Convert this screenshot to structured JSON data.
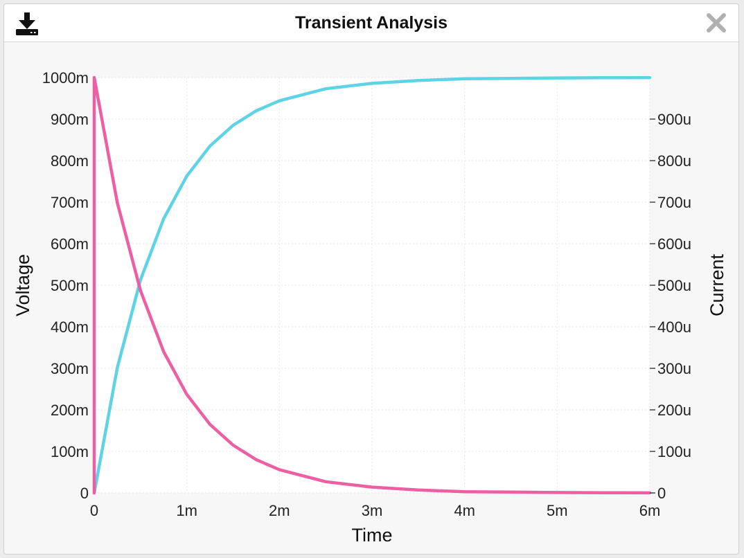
{
  "window": {
    "title": "Transient Analysis",
    "icons": {
      "download": "download-icon",
      "close": "close-icon"
    }
  },
  "chart_data": {
    "type": "line",
    "xlabel": "Time",
    "ylabel": "Voltage",
    "y2label": "Current",
    "xlim": [
      0,
      0.006
    ],
    "ylim": [
      0,
      1.0
    ],
    "y2lim": [
      0,
      0.001
    ],
    "x_ticks": [
      0,
      0.001,
      0.002,
      0.003,
      0.004,
      0.005,
      0.006
    ],
    "x_tick_labels": [
      "0",
      "1m",
      "2m",
      "3m",
      "4m",
      "5m",
      "6m"
    ],
    "y_ticks": [
      0,
      0.1,
      0.2,
      0.3,
      0.4,
      0.5,
      0.6,
      0.7,
      0.8,
      0.9,
      1.0
    ],
    "y_tick_labels": [
      "0",
      "100m",
      "200m",
      "300m",
      "400m",
      "500m",
      "600m",
      "700m",
      "800m",
      "900m",
      "1000m"
    ],
    "y2_ticks": [
      0,
      0.0001,
      0.0002,
      0.0003,
      0.0004,
      0.0005,
      0.0006,
      0.0007,
      0.0008,
      0.0009
    ],
    "y2_tick_labels": [
      "0",
      "100u",
      "200u",
      "300u",
      "400u",
      "500u",
      "600u",
      "700u",
      "800u",
      "900u"
    ],
    "grid": true,
    "colors": {
      "voltage": "#5fd3e6",
      "current": "#ec5fa2"
    },
    "series": [
      {
        "axis": "left",
        "color": "#5fd3e6",
        "x": [
          0,
          0.00025,
          0.0005,
          0.00075,
          0.001,
          0.00125,
          0.0015,
          0.00175,
          0.002,
          0.0025,
          0.003,
          0.0035,
          0.004,
          0.0045,
          0.005,
          0.0055,
          0.006
        ],
        "y": [
          0,
          0.302,
          0.513,
          0.66,
          0.763,
          0.835,
          0.885,
          0.92,
          0.944,
          0.973,
          0.986,
          0.993,
          0.997,
          0.998,
          0.999,
          0.9996,
          0.9998
        ]
      },
      {
        "axis": "right",
        "color": "#ec5fa2",
        "x": [
          0,
          0,
          0.00025,
          0.0005,
          0.00075,
          0.001,
          0.00125,
          0.0015,
          0.00175,
          0.002,
          0.0025,
          0.003,
          0.0035,
          0.004,
          0.0045,
          0.005,
          0.0055,
          0.006
        ],
        "y": [
          0,
          0.001,
          0.000698,
          0.000487,
          0.00034,
          0.000237,
          0.000165,
          0.000115,
          8e-05,
          5.6e-05,
          2.7e-05,
          1.4e-05,
          7e-06,
          3e-06,
          2e-06,
          1e-06,
          4e-07,
          2e-07
        ]
      }
    ]
  }
}
